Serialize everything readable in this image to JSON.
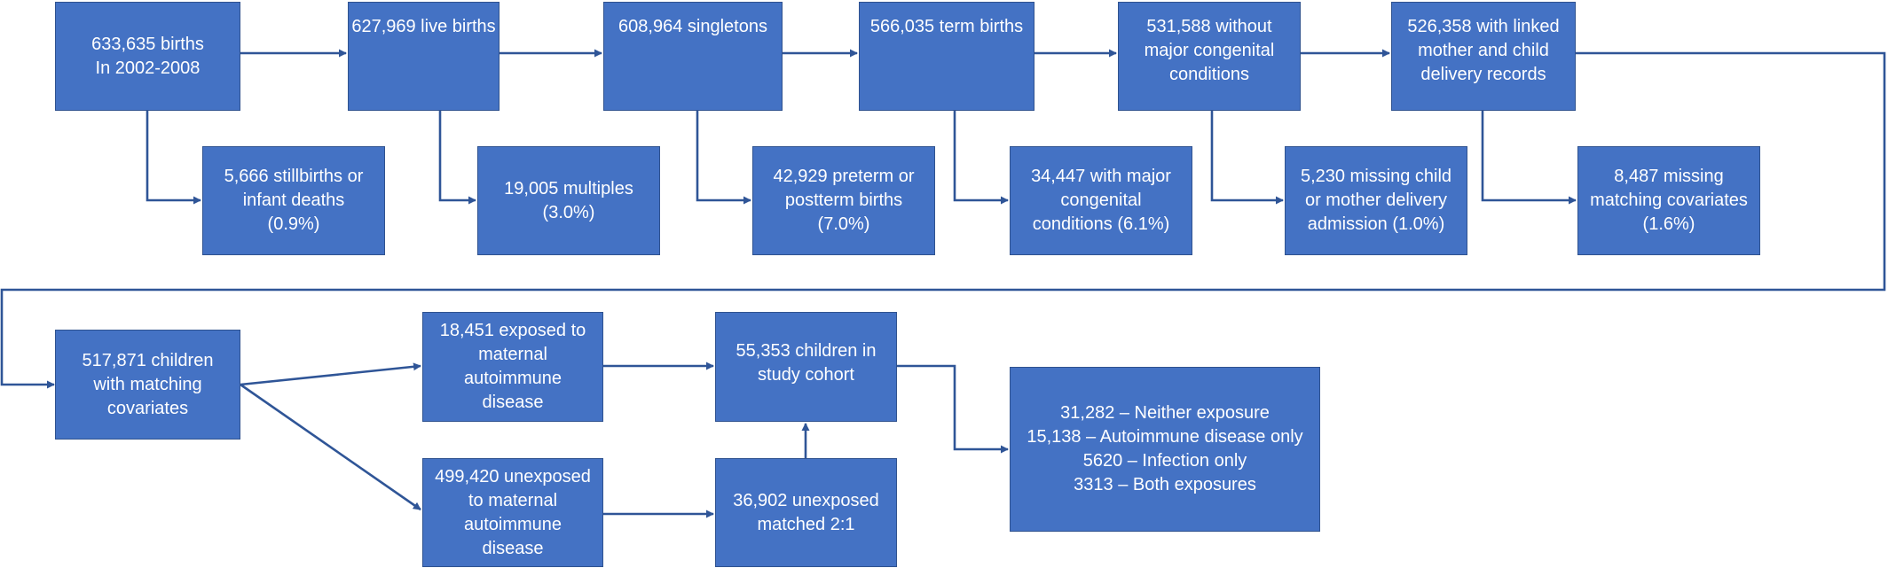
{
  "colors": {
    "box_fill": "#4472c4",
    "box_border": "#2f528f",
    "connector": "#2f5597",
    "text": "#ffffff"
  },
  "boxes": {
    "births": [
      "633,635 births",
      "In 2002-2008"
    ],
    "live_births": [
      "627,969 live births"
    ],
    "singletons": [
      "608,964 singletons"
    ],
    "term_births": [
      "566,035 term births"
    ],
    "no_congenital": [
      "531,588 without",
      "major congenital",
      "conditions"
    ],
    "linked_records": [
      "526,358 with linked",
      "mother and child",
      "delivery records"
    ],
    "excl_stillbirths": [
      "5,666 stillbirths or",
      "infant deaths",
      "(0.9%)"
    ],
    "excl_multiples": [
      "19,005 multiples",
      "(3.0%)"
    ],
    "excl_preterm": [
      "42,929 preterm or",
      "postterm births",
      "(7.0%)"
    ],
    "excl_congenital": [
      "34,447 with major",
      "congenital",
      "conditions (6.1%)"
    ],
    "excl_missing_delivery": [
      "5,230 missing child",
      "or mother delivery",
      "admission (1.0%)"
    ],
    "excl_missing_covariates": [
      "8,487 missing",
      "matching covariates",
      "(1.6%)"
    ],
    "matching_covariates": [
      "517,871 children",
      "with matching",
      "covariates"
    ],
    "exposed": [
      "18,451 exposed to",
      "maternal",
      "autoimmune",
      "disease"
    ],
    "unexposed": [
      "499,420 unexposed",
      "to maternal",
      "autoimmune",
      "disease"
    ],
    "study_cohort": [
      "55,353 children in",
      "study cohort"
    ],
    "unexposed_matched": [
      "36,902 unexposed",
      "matched 2:1"
    ],
    "exposure_breakdown": [
      "31,282 – Neither exposure",
      "15,138 – Autoimmune disease only",
      "5620 – Infection only",
      "3313 – Both exposures"
    ]
  }
}
